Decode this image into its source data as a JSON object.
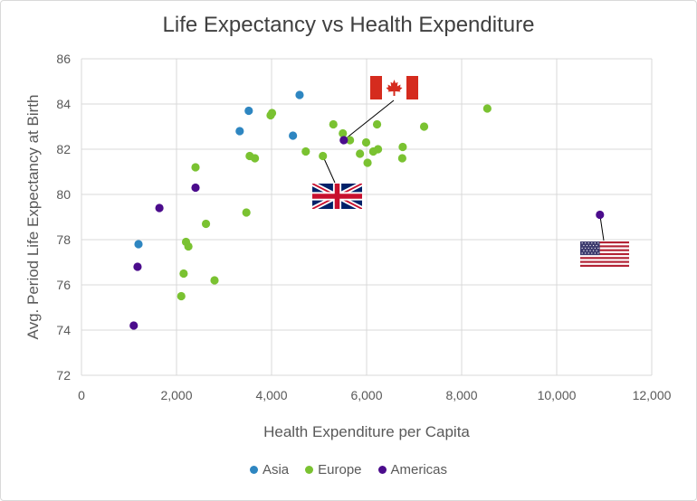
{
  "chart_data": {
    "type": "scatter",
    "title": "Life Expectancy vs Health Expenditure",
    "xlabel": "Health Expenditure per Capita",
    "ylabel": "Avg. Period Life Expectancy at Birth",
    "xlim": [
      0,
      12000
    ],
    "ylim": [
      72,
      86
    ],
    "xticks": [
      0,
      2000,
      4000,
      6000,
      8000,
      10000,
      12000
    ],
    "xtick_labels": [
      "0",
      "2,000",
      "4,000",
      "6,000",
      "8,000",
      "10,000",
      "12,000"
    ],
    "yticks": [
      72,
      74,
      76,
      78,
      80,
      82,
      84,
      86
    ],
    "ytick_labels": [
      "72",
      "74",
      "76",
      "78",
      "80",
      "82",
      "84",
      "86"
    ],
    "grid": true,
    "legend_position": "bottom",
    "series": [
      {
        "name": "Asia",
        "color": "#2e86c1",
        "points": [
          {
            "x": 1200,
            "y": 77.8
          },
          {
            "x": 3330,
            "y": 82.8
          },
          {
            "x": 3520,
            "y": 83.7
          },
          {
            "x": 4450,
            "y": 82.6
          },
          {
            "x": 4590,
            "y": 84.4
          }
        ]
      },
      {
        "name": "Europe",
        "color": "#7ac231",
        "points": [
          {
            "x": 2100,
            "y": 75.5
          },
          {
            "x": 2150,
            "y": 76.5
          },
          {
            "x": 2200,
            "y": 77.9
          },
          {
            "x": 2250,
            "y": 77.7
          },
          {
            "x": 2400,
            "y": 81.2
          },
          {
            "x": 2620,
            "y": 78.7
          },
          {
            "x": 2800,
            "y": 76.2
          },
          {
            "x": 3470,
            "y": 79.2
          },
          {
            "x": 3540,
            "y": 81.7
          },
          {
            "x": 3650,
            "y": 81.6
          },
          {
            "x": 3980,
            "y": 83.5
          },
          {
            "x": 4010,
            "y": 83.6
          },
          {
            "x": 4720,
            "y": 81.9
          },
          {
            "x": 5080,
            "y": 81.7
          },
          {
            "x": 5300,
            "y": 83.1
          },
          {
            "x": 5500,
            "y": 82.7
          },
          {
            "x": 5650,
            "y": 82.4
          },
          {
            "x": 5860,
            "y": 81.8
          },
          {
            "x": 5990,
            "y": 82.3
          },
          {
            "x": 6020,
            "y": 81.4
          },
          {
            "x": 6140,
            "y": 81.9
          },
          {
            "x": 6220,
            "y": 83.1
          },
          {
            "x": 6240,
            "y": 82.0
          },
          {
            "x": 6750,
            "y": 81.6
          },
          {
            "x": 6760,
            "y": 82.1
          },
          {
            "x": 7210,
            "y": 83.0
          },
          {
            "x": 8540,
            "y": 83.8
          }
        ]
      },
      {
        "name": "Americas",
        "color": "#4b0c8c",
        "points": [
          {
            "x": 1100,
            "y": 74.2
          },
          {
            "x": 1180,
            "y": 76.8
          },
          {
            "x": 1640,
            "y": 79.4
          },
          {
            "x": 2400,
            "y": 80.3
          },
          {
            "x": 5520,
            "y": 82.4
          },
          {
            "x": 10910,
            "y": 79.1
          }
        ]
      }
    ],
    "annotations": [
      {
        "label": "Canada",
        "flag": "canada-flag",
        "anchor": {
          "x": 5520,
          "y": 82.4
        }
      },
      {
        "label": "United Kingdom",
        "flag": "uk-flag",
        "anchor": {
          "x": 5080,
          "y": 81.7
        }
      },
      {
        "label": "United States",
        "flag": "usa-flag",
        "anchor": {
          "x": 10910,
          "y": 79.1
        }
      }
    ]
  }
}
